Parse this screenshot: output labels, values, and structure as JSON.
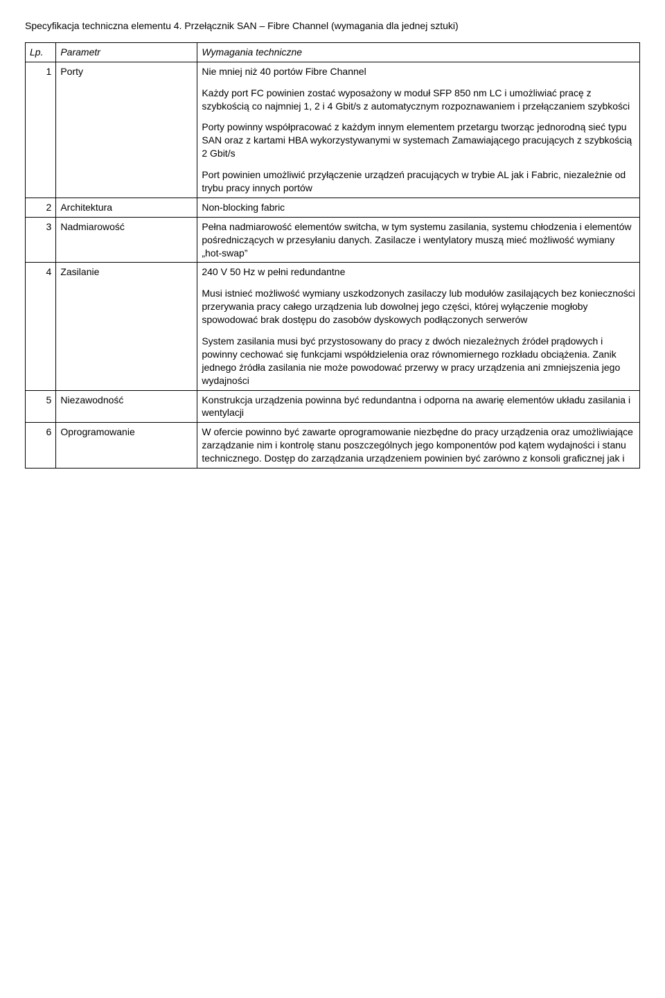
{
  "title": "Specyfikacja techniczna elementu 4. Przełącznik SAN – Fibre Channel (wymagania dla jednej sztuki)",
  "headers": {
    "lp": "Lp.",
    "param": "Parametr",
    "req": "Wymagania techniczne"
  },
  "rows": [
    {
      "lp": "1",
      "param": "Porty",
      "req": [
        "Nie mniej niż 40 portów Fibre Channel",
        "Każdy port FC powinien zostać wyposażony w moduł SFP 850 nm LC i umożliwiać pracę z szybkością co najmniej 1, 2 i 4 Gbit/s z automatycznym rozpoznawaniem i przełączaniem szybkości",
        "Porty powinny współpracować z każdym innym elementem przetargu tworząc jednorodną sieć typu SAN oraz z kartami HBA wykorzystywanymi w systemach Zamawiającego pracujących z szybkością 2 Gbit/s",
        "Port powinien umożliwić przyłączenie urządzeń pracujących w trybie AL jak i Fabric, niezależnie od trybu pracy innych portów"
      ]
    },
    {
      "lp": "2",
      "param": "Architektura",
      "req": [
        "Non-blocking fabric"
      ]
    },
    {
      "lp": "3",
      "param": "Nadmiarowość",
      "req": [
        "Pełna nadmiarowość elementów switcha, w tym systemu zasilania, systemu chłodzenia i elementów pośredniczących w przesyłaniu danych. Zasilacze i wentylatory muszą mieć możliwość wymiany „hot-swap”"
      ]
    },
    {
      "lp": "4",
      "param": "Zasilanie",
      "req": [
        "240 V 50 Hz w pełni redundantne",
        "Musi istnieć możliwość wymiany uszkodzonych zasilaczy lub modułów zasilających bez konieczności przerywania pracy całego urządzenia lub dowolnej jego części, której wyłączenie mogłoby spowodować brak dostępu do zasobów dyskowych podłączonych serwerów",
        "System zasilania musi być przystosowany do pracy z dwóch niezależnych źródeł prądowych i powinny cechować się funkcjami współdzielenia oraz równomiernego rozkładu obciążenia. Zanik jednego źródła zasilania nie może powodować przerwy w pracy urządzenia ani zmniejszenia jego wydajności"
      ]
    },
    {
      "lp": "5",
      "param": "Niezawodność",
      "req": [
        "Konstrukcja urządzenia powinna być redundantna i odporna na awarię elementów układu zasilania i wentylacji"
      ]
    },
    {
      "lp": "6",
      "param": "Oprogramowanie",
      "req": [
        "W ofercie powinno być zawarte oprogramowanie niezbędne do pracy urządzenia oraz umożliwiające zarządzanie nim i kontrolę stanu poszczególnych jego komponentów pod kątem wydajności i stanu technicznego. Dostęp do zarządzania urządzeniem powinien być zarówno z konsoli graficznej jak i"
      ]
    }
  ]
}
